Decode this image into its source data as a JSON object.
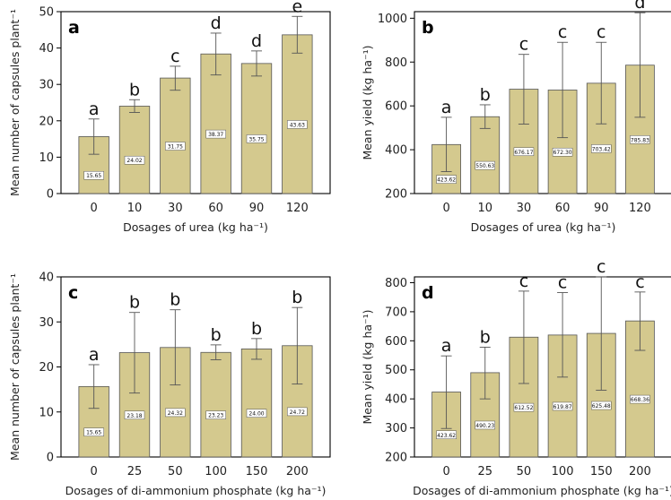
{
  "chart_data": [
    {
      "type": "bar",
      "panel": "a",
      "xlabel": "Dosages of urea (kg ha⁻¹)",
      "ylabel": "Mean number of capsules plant⁻¹",
      "ylim": [
        0,
        50
      ],
      "yticks": [
        0,
        10,
        20,
        30,
        40,
        50
      ],
      "categories": [
        "0",
        "10",
        "30",
        "60",
        "90",
        "120"
      ],
      "values": [
        15.65,
        24.02,
        31.75,
        38.37,
        35.75,
        43.63
      ],
      "data_labels": [
        "15.65",
        "24.02",
        "31.75",
        "38.37",
        "35.75",
        "43.63"
      ],
      "err_low": [
        10.8,
        22.3,
        28.4,
        32.6,
        32.3,
        38.6
      ],
      "err_high": [
        20.5,
        25.8,
        35.0,
        44.1,
        39.2,
        48.7
      ],
      "letters": [
        "a",
        "b",
        "c",
        "d",
        "d",
        "e"
      ],
      "grid": false
    },
    {
      "type": "bar",
      "panel": "b",
      "xlabel": "Dosages of urea (kg ha⁻¹)",
      "ylabel": "Mean yield (kg ha⁻¹)",
      "ylim": [
        200,
        1030
      ],
      "yticks": [
        200,
        400,
        600,
        800,
        1000
      ],
      "categories": [
        "0",
        "10",
        "30",
        "60",
        "90",
        "120"
      ],
      "values": [
        423.62,
        550.63,
        676.17,
        672.3,
        703.42,
        785.83
      ],
      "data_labels": [
        "423.62",
        "550.63",
        "676.17",
        "672.30",
        "703.42",
        "785.83"
      ],
      "err_low": [
        300,
        497,
        517,
        455,
        518,
        548
      ],
      "err_high": [
        548,
        605,
        835,
        890,
        890,
        1025
      ],
      "letters": [
        "a",
        "b",
        "c",
        "c",
        "c",
        "d"
      ],
      "grid": false
    },
    {
      "type": "bar",
      "panel": "c",
      "xlabel": "Dosages of di-ammonium phosphate (kg ha⁻¹)",
      "ylabel": "Mean number of capsules plant⁻¹",
      "ylim": [
        0,
        40
      ],
      "yticks": [
        0,
        10,
        20,
        30,
        40
      ],
      "categories": [
        "0",
        "25",
        "50",
        "100",
        "150",
        "200"
      ],
      "values": [
        15.65,
        23.18,
        24.32,
        23.23,
        24.0,
        24.72
      ],
      "data_labels": [
        "15.65",
        "23.18",
        "24.32",
        "23.23",
        "24.00",
        "24.72"
      ],
      "err_low": [
        10.8,
        14.2,
        16.0,
        21.6,
        21.7,
        16.2
      ],
      "err_high": [
        20.5,
        32.1,
        32.7,
        24.9,
        26.3,
        33.2
      ],
      "letters": [
        "a",
        "b",
        "b",
        "b",
        "b",
        "b"
      ],
      "grid": false
    },
    {
      "type": "bar",
      "panel": "d",
      "xlabel": "Dosages of di-ammonium phosphate (kg ha⁻¹)",
      "ylabel": "Mean yield (kg ha⁻¹)",
      "ylim": [
        200,
        820
      ],
      "yticks": [
        200,
        300,
        400,
        500,
        600,
        700,
        800
      ],
      "categories": [
        "0",
        "25",
        "50",
        "100",
        "150",
        "200"
      ],
      "values": [
        423.62,
        490.23,
        612.52,
        619.87,
        625.48,
        668.36
      ],
      "data_labels": [
        "423.62",
        "490.23",
        "612.52",
        "619.87",
        "625.48",
        "668.36"
      ],
      "err_low": [
        298,
        400,
        453,
        475,
        430,
        567
      ],
      "err_high": [
        548,
        578,
        771,
        766,
        820,
        768
      ],
      "letters": [
        "a",
        "b",
        "c",
        "c",
        "c",
        "c"
      ],
      "grid": false
    }
  ]
}
